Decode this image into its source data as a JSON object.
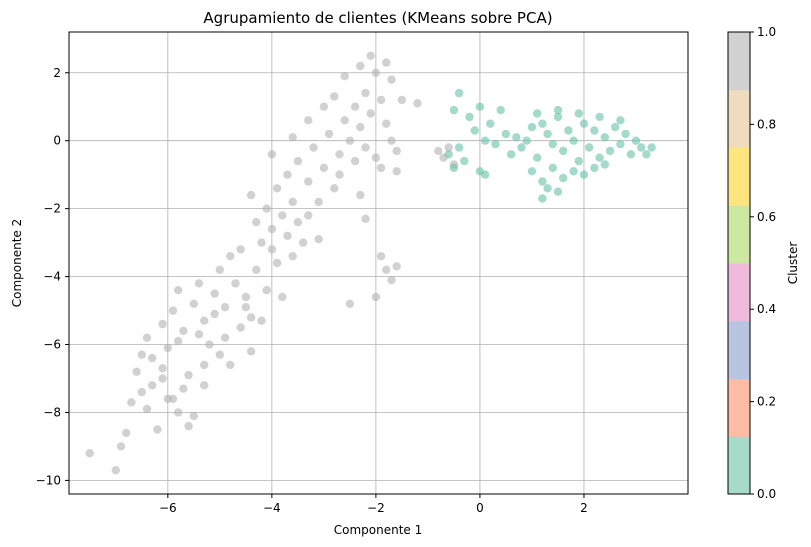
{
  "chart_data": {
    "type": "scatter",
    "title": "Agrupamiento de clientes (KMeans sobre PCA)",
    "xlabel": "Componente 1",
    "ylabel": "Componente 2",
    "xlim": [
      -7.9,
      4.0
    ],
    "ylim": [
      -10.4,
      3.2
    ],
    "x_ticks": [
      -6,
      -4,
      -2,
      0,
      2
    ],
    "y_ticks": [
      -10,
      -8,
      -6,
      -4,
      -2,
      0,
      2
    ],
    "grid": true,
    "point_opacity": 0.6,
    "series": [
      {
        "cluster": 1,
        "color": "#b3b3b3",
        "points": [
          [
            -7.5,
            -9.2
          ],
          [
            -7.0,
            -9.7
          ],
          [
            -6.9,
            -9.0
          ],
          [
            -6.8,
            -8.6
          ],
          [
            -6.7,
            -7.7
          ],
          [
            -6.5,
            -7.4
          ],
          [
            -6.4,
            -7.9
          ],
          [
            -6.2,
            -8.5
          ],
          [
            -6.1,
            -7.0
          ],
          [
            -6.6,
            -6.8
          ],
          [
            -6.0,
            -7.6
          ],
          [
            -5.8,
            -8.0
          ],
          [
            -5.6,
            -8.4
          ],
          [
            -5.5,
            -8.1
          ],
          [
            -5.3,
            -7.2
          ],
          [
            -6.3,
            -6.4
          ],
          [
            -6.0,
            -6.1
          ],
          [
            -6.4,
            -5.8
          ],
          [
            -6.1,
            -5.4
          ],
          [
            -5.9,
            -5.0
          ],
          [
            -5.7,
            -5.6
          ],
          [
            -5.5,
            -4.8
          ],
          [
            -5.3,
            -5.3
          ],
          [
            -5.1,
            -4.5
          ],
          [
            -4.9,
            -4.9
          ],
          [
            -4.7,
            -4.2
          ],
          [
            -4.5,
            -4.6
          ],
          [
            -4.3,
            -3.8
          ],
          [
            -4.1,
            -4.4
          ],
          [
            -3.9,
            -3.6
          ],
          [
            -5.2,
            -6.0
          ],
          [
            -4.9,
            -5.8
          ],
          [
            -4.6,
            -5.5
          ],
          [
            -4.4,
            -5.2
          ],
          [
            -4.8,
            -6.6
          ],
          [
            -4.2,
            -3.0
          ],
          [
            -4.0,
            -2.6
          ],
          [
            -3.8,
            -2.2
          ],
          [
            -3.6,
            -1.8
          ],
          [
            -3.5,
            -2.4
          ],
          [
            -4.1,
            -2.0
          ],
          [
            -3.9,
            -1.4
          ],
          [
            -3.7,
            -1.0
          ],
          [
            -3.5,
            -0.6
          ],
          [
            -3.3,
            -1.2
          ],
          [
            -3.2,
            -0.2
          ],
          [
            -3.0,
            -0.8
          ],
          [
            -2.9,
            0.2
          ],
          [
            -2.7,
            -0.4
          ],
          [
            -2.6,
            0.6
          ],
          [
            -2.5,
            0.0
          ],
          [
            -2.4,
            1.0
          ],
          [
            -2.3,
            0.4
          ],
          [
            -2.2,
            1.4
          ],
          [
            -2.1,
            0.8
          ],
          [
            -2.0,
            2.0
          ],
          [
            -1.9,
            1.2
          ],
          [
            -2.1,
            2.5
          ],
          [
            -1.8,
            0.5
          ],
          [
            -1.7,
            0.0
          ],
          [
            -2.0,
            -0.5
          ],
          [
            -1.6,
            -0.9
          ],
          [
            -1.7,
            1.8
          ],
          [
            -1.5,
            1.2
          ],
          [
            -1.6,
            -0.3
          ],
          [
            -2.3,
            -1.6
          ],
          [
            -2.8,
            -1.4
          ],
          [
            -3.1,
            -2.9
          ],
          [
            -3.4,
            -3.0
          ],
          [
            -2.2,
            -2.3
          ],
          [
            -1.9,
            -3.4
          ],
          [
            -1.8,
            -3.8
          ],
          [
            -1.7,
            -4.1
          ],
          [
            -1.6,
            -3.7
          ],
          [
            -2.5,
            -4.8
          ],
          [
            -2.0,
            -4.6
          ],
          [
            -4.6,
            -3.2
          ],
          [
            -4.3,
            -2.4
          ],
          [
            -5.0,
            -3.8
          ],
          [
            -4.8,
            -3.4
          ],
          [
            -5.4,
            -4.2
          ],
          [
            -5.8,
            -4.4
          ],
          [
            -4.0,
            -3.2
          ],
          [
            -3.7,
            -2.8
          ],
          [
            -4.4,
            -1.6
          ],
          [
            -4.0,
            -0.4
          ],
          [
            -3.6,
            0.1
          ],
          [
            -3.3,
            0.6
          ],
          [
            -3.0,
            1.0
          ],
          [
            -2.8,
            1.3
          ],
          [
            -0.7,
            -0.5
          ],
          [
            -0.6,
            -0.2
          ],
          [
            -0.5,
            -0.7
          ],
          [
            -0.8,
            -0.3
          ],
          [
            -1.2,
            1.1
          ],
          [
            -6.1,
            -6.7
          ],
          [
            -5.7,
            -7.3
          ],
          [
            -5.9,
            -7.6
          ],
          [
            -5.0,
            -6.3
          ],
          [
            -4.4,
            -6.2
          ],
          [
            -5.3,
            -6.6
          ],
          [
            -5.6,
            -6.9
          ],
          [
            -6.3,
            -7.2
          ],
          [
            -6.5,
            -6.3
          ],
          [
            -5.8,
            -5.9
          ],
          [
            -4.2,
            -5.3
          ],
          [
            -4.5,
            -4.9
          ],
          [
            -5.4,
            -5.7
          ],
          [
            -5.1,
            -5.1
          ],
          [
            -3.8,
            -4.6
          ],
          [
            -3.6,
            -3.4
          ],
          [
            -3.3,
            -2.2
          ],
          [
            -3.1,
            -1.8
          ],
          [
            -2.7,
            -1.0
          ],
          [
            -2.4,
            -0.6
          ],
          [
            -2.2,
            -0.2
          ],
          [
            -1.9,
            -0.8
          ],
          [
            -2.6,
            1.9
          ],
          [
            -2.3,
            2.2
          ],
          [
            -1.8,
            2.3
          ]
        ]
      },
      {
        "cluster": 0,
        "color": "#66c2a5",
        "points": [
          [
            -0.5,
            0.9
          ],
          [
            -0.4,
            1.4
          ],
          [
            -0.2,
            0.7
          ],
          [
            0.0,
            1.0
          ],
          [
            0.2,
            0.5
          ],
          [
            0.4,
            0.9
          ],
          [
            0.1,
            0.0
          ],
          [
            0.3,
            -0.1
          ],
          [
            -0.1,
            0.3
          ],
          [
            0.5,
            0.2
          ],
          [
            -0.6,
            -0.4
          ],
          [
            -0.5,
            -0.8
          ],
          [
            -0.4,
            -0.2
          ],
          [
            -0.3,
            -0.6
          ],
          [
            0.0,
            -0.9
          ],
          [
            0.1,
            -1.0
          ],
          [
            0.6,
            -0.4
          ],
          [
            0.8,
            -0.2
          ],
          [
            1.0,
            0.4
          ],
          [
            1.1,
            -0.5
          ],
          [
            1.2,
            0.5
          ],
          [
            1.3,
            0.2
          ],
          [
            1.4,
            -0.1
          ],
          [
            1.5,
            0.7
          ],
          [
            1.6,
            -0.3
          ],
          [
            1.7,
            0.3
          ],
          [
            1.8,
            0.0
          ],
          [
            1.9,
            -0.6
          ],
          [
            2.0,
            0.5
          ],
          [
            2.1,
            -0.2
          ],
          [
            2.2,
            0.3
          ],
          [
            2.3,
            -0.5
          ],
          [
            2.4,
            0.1
          ],
          [
            2.5,
            -0.3
          ],
          [
            2.6,
            0.4
          ],
          [
            2.7,
            -0.1
          ],
          [
            2.8,
            0.2
          ],
          [
            2.9,
            -0.4
          ],
          [
            3.0,
            0.0
          ],
          [
            3.1,
            -0.2
          ],
          [
            3.2,
            -0.4
          ],
          [
            3.3,
            -0.2
          ],
          [
            1.0,
            -0.9
          ],
          [
            1.2,
            -1.2
          ],
          [
            1.4,
            -0.8
          ],
          [
            1.6,
            -1.1
          ],
          [
            1.8,
            -0.9
          ],
          [
            2.0,
            -1.0
          ],
          [
            2.2,
            -0.8
          ],
          [
            2.4,
            -0.7
          ],
          [
            1.3,
            -1.4
          ],
          [
            1.2,
            -1.7
          ],
          [
            1.5,
            -1.5
          ],
          [
            1.1,
            0.8
          ],
          [
            1.5,
            0.9
          ],
          [
            1.9,
            0.8
          ],
          [
            2.3,
            0.7
          ],
          [
            2.7,
            0.6
          ],
          [
            0.9,
            0.0
          ],
          [
            0.7,
            0.1
          ]
        ]
      }
    ],
    "colorbar": {
      "label": "Cluster",
      "range": [
        0.0,
        1.0
      ],
      "ticks": [
        "0.0",
        "0.2",
        "0.4",
        "0.6",
        "0.8",
        "1.0"
      ],
      "colors": [
        "#a6dbca",
        "#fdbda5",
        "#b8c4e0",
        "#f0bbdb",
        "#cde8a0",
        "#ffe57f",
        "#efdcbd",
        "#d1d1d1"
      ]
    }
  }
}
